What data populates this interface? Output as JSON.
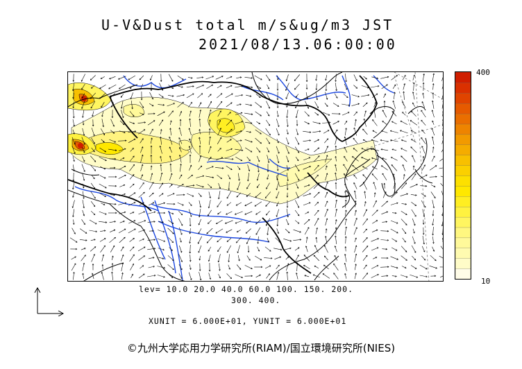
{
  "title_line1": "U-V&Dust total m/s&ug/m3 JST",
  "title_line2": "2021/08/13.06:00:00",
  "colorbar": {
    "max_label": "400",
    "min_label": "10",
    "colors": [
      "#fffce8",
      "#fffcc8",
      "#fffbb0",
      "#fff99a",
      "#fff780",
      "#fff560",
      "#fff240",
      "#ffee22",
      "#ffe800",
      "#fde000",
      "#fbd000",
      "#f8c000",
      "#f5ac00",
      "#f29a00",
      "#ee8400",
      "#ea6e00",
      "#e65a00",
      "#e04400",
      "#da3000",
      "#d01e00"
    ]
  },
  "levels_line1": "lev= 10.0 20.0 40.0 60.0 100. 150. 200.",
  "levels_line2": "300. 400.",
  "units_line": "XUNIT = 6.000E+01, YUNIT = 6.000E+01",
  "credit": "©九州大学応用力学研究所(RIAM)/国立環境研究所(NIES)",
  "vector_legend_icon": "axis-arrows-icon"
}
